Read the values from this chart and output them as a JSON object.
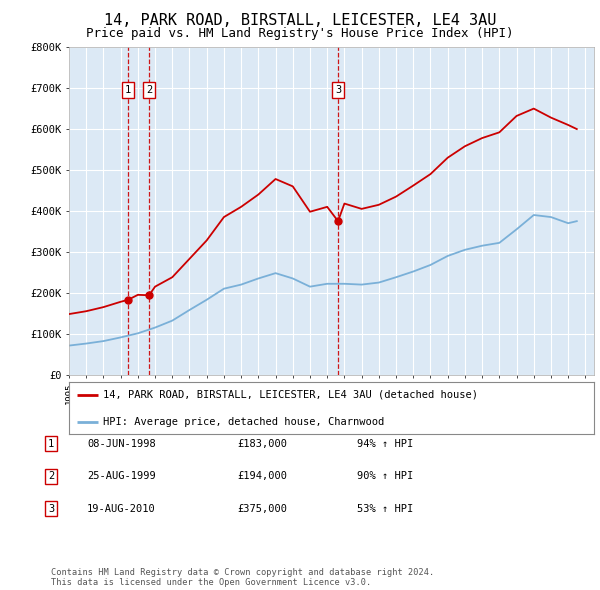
{
  "title": "14, PARK ROAD, BIRSTALL, LEICESTER, LE4 3AU",
  "subtitle": "Price paid vs. HM Land Registry's House Price Index (HPI)",
  "title_fontsize": 11,
  "subtitle_fontsize": 9,
  "background_color": "#ffffff",
  "plot_bg_color": "#dce9f5",
  "grid_color": "#ffffff",
  "ylim": [
    0,
    800000
  ],
  "yticks": [
    0,
    100000,
    200000,
    300000,
    400000,
    500000,
    600000,
    700000,
    800000
  ],
  "ytick_labels": [
    "£0",
    "£100K",
    "£200K",
    "£300K",
    "£400K",
    "£500K",
    "£600K",
    "£700K",
    "£800K"
  ],
  "xlim_start": 1995.0,
  "xlim_end": 2025.5,
  "hpi_color": "#7ab0d8",
  "price_color": "#cc0000",
  "sale_points": [
    {
      "year": 1998.44,
      "price": 183000,
      "label": "1"
    },
    {
      "year": 1999.65,
      "price": 194000,
      "label": "2"
    },
    {
      "year": 2010.63,
      "price": 375000,
      "label": "3"
    }
  ],
  "legend_entries": [
    "14, PARK ROAD, BIRSTALL, LEICESTER, LE4 3AU (detached house)",
    "HPI: Average price, detached house, Charnwood"
  ],
  "table_rows": [
    {
      "num": "1",
      "date": "08-JUN-1998",
      "price": "£183,000",
      "hpi": "94% ↑ HPI"
    },
    {
      "num": "2",
      "date": "25-AUG-1999",
      "price": "£194,000",
      "hpi": "90% ↑ HPI"
    },
    {
      "num": "3",
      "date": "19-AUG-2010",
      "price": "£375,000",
      "hpi": "53% ↑ HPI"
    }
  ],
  "footer_text": "Contains HM Land Registry data © Crown copyright and database right 2024.\nThis data is licensed under the Open Government Licence v3.0.",
  "hpi_years": [
    1995,
    1996,
    1997,
    1998,
    1999,
    2000,
    2001,
    2002,
    2003,
    2004,
    2005,
    2006,
    2007,
    2008,
    2009,
    2010,
    2011,
    2012,
    2013,
    2014,
    2015,
    2016,
    2017,
    2018,
    2019,
    2020,
    2021,
    2022,
    2023,
    2024,
    2024.5
  ],
  "hpi_values": [
    71000,
    76000,
    82000,
    91000,
    101000,
    115000,
    132000,
    158000,
    183000,
    210000,
    220000,
    235000,
    248000,
    235000,
    215000,
    222000,
    222000,
    220000,
    225000,
    238000,
    252000,
    268000,
    290000,
    305000,
    315000,
    322000,
    355000,
    390000,
    385000,
    370000,
    375000
  ],
  "price_years": [
    1995,
    1996,
    1997,
    1998,
    1998.44,
    1999,
    1999.65,
    2000,
    2001,
    2002,
    2003,
    2004,
    2005,
    2006,
    2007,
    2008,
    2009,
    2010,
    2010.63,
    2011,
    2012,
    2013,
    2014,
    2015,
    2016,
    2017,
    2018,
    2019,
    2020,
    2021,
    2022,
    2023,
    2024,
    2024.5
  ],
  "price_values": [
    148000,
    155000,
    165000,
    178000,
    183000,
    195000,
    194000,
    215000,
    238000,
    283000,
    328000,
    385000,
    410000,
    440000,
    478000,
    460000,
    398000,
    410000,
    375000,
    418000,
    405000,
    415000,
    435000,
    462000,
    490000,
    530000,
    558000,
    578000,
    592000,
    632000,
    650000,
    628000,
    610000,
    600000
  ]
}
